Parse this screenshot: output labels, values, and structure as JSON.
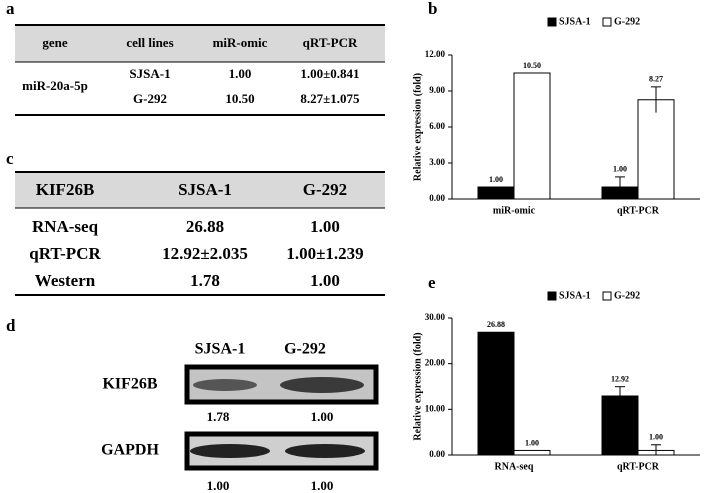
{
  "panel_labels": [
    "a",
    "b",
    "c",
    "d",
    "e"
  ],
  "table_a": {
    "header": [
      "gene",
      "cell lines",
      "miR-omic",
      "qRT-PCR"
    ],
    "gene": "miR-20a-5p",
    "rows": [
      [
        "SJSA-1",
        "1.00",
        "1.00±0.841"
      ],
      [
        "G-292",
        "10.50",
        "8.27±1.075"
      ]
    ]
  },
  "table_c": {
    "header": [
      "KIF26B",
      "SJSA-1",
      "G-292"
    ],
    "rows": [
      [
        "RNA-seq",
        "26.88",
        "1.00"
      ],
      [
        "qRT-PCR",
        "12.92±2.035",
        "1.00±1.239"
      ],
      [
        "Western",
        "1.78",
        "1.00"
      ]
    ]
  },
  "blot_d": {
    "columns": [
      "SJSA-1",
      "G-292"
    ],
    "rows": [
      {
        "label": "KIF26B",
        "values": [
          "1.78",
          "1.00"
        ]
      },
      {
        "label": "GAPDH",
        "values": [
          "1.00",
          "1.00"
        ]
      }
    ]
  },
  "chart_data": [
    {
      "type": "bar",
      "y_label": "Relative expression (fold)",
      "categories": [
        "miR-omic",
        "qRT-PCR"
      ],
      "series": [
        {
          "name": "SJSA-1",
          "color": "#000000",
          "values": [
            1.0,
            1.0
          ],
          "value_labels": [
            "1.00",
            "1.00"
          ],
          "errors": [
            null,
            0.841
          ]
        },
        {
          "name": "G-292",
          "color": "#ffffff",
          "values": [
            10.5,
            8.27
          ],
          "value_labels": [
            "10.50",
            "8.27"
          ],
          "errors": [
            null,
            1.075
          ]
        }
      ],
      "ylim": [
        0,
        12
      ],
      "yticks": [
        {
          "value": 0,
          "label": "0.00"
        },
        {
          "value": 3,
          "label": "3.00"
        },
        {
          "value": 6,
          "label": "6.00"
        },
        {
          "value": 9,
          "label": "9.00"
        },
        {
          "value": 12,
          "label": "12.00"
        }
      ],
      "legend": "top"
    },
    {
      "type": "bar",
      "y_label": "Relative expression (fold)",
      "categories": [
        "RNA-seq",
        "qRT-PCR"
      ],
      "series": [
        {
          "name": "SJSA-1",
          "color": "#000000",
          "values": [
            26.88,
            12.92
          ],
          "value_labels": [
            "26.88",
            "12.92"
          ],
          "errors": [
            null,
            2.035
          ]
        },
        {
          "name": "G-292",
          "color": "#ffffff",
          "values": [
            1.0,
            1.0
          ],
          "value_labels": [
            "1.00",
            "1.00"
          ],
          "errors": [
            null,
            1.239
          ]
        }
      ],
      "ylim": [
        0,
        30
      ],
      "yticks": [
        {
          "value": 0,
          "label": "0.00"
        },
        {
          "value": 10,
          "label": "10.00"
        },
        {
          "value": 20,
          "label": "20.00"
        },
        {
          "value": 30,
          "label": "30.00"
        }
      ],
      "legend": "top"
    }
  ]
}
